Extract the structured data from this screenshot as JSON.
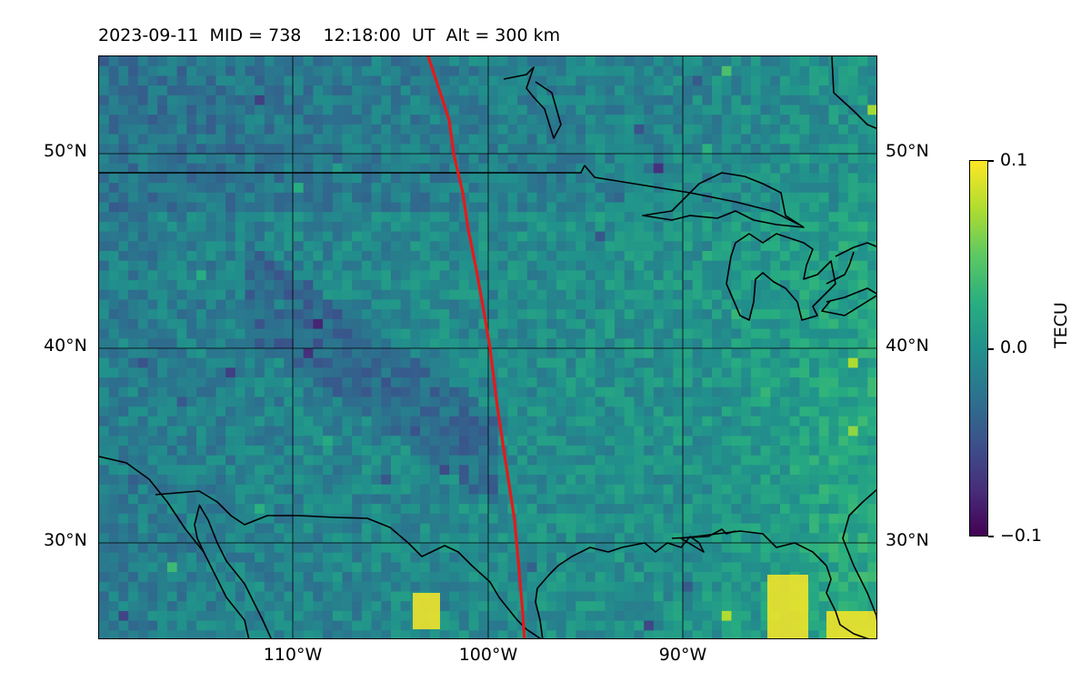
{
  "title": "2023-09-11  MID = 738    12:18:00  UT  Alt = 300 km",
  "map": {
    "lat_labels_left": [
      "50°N",
      "40°N",
      "30°N"
    ],
    "lat_labels_right": [
      "50°N",
      "40°N",
      "30°N"
    ],
    "lon_labels": [
      "110°W",
      "100°W",
      "90°W"
    ],
    "gridlines": true,
    "extent": {
      "lon": [
        -120,
        -80
      ],
      "lat": [
        25,
        55
      ]
    },
    "track_color": "#e41a1c",
    "coastline_color": "#000000"
  },
  "colorbar": {
    "label": "TECU",
    "ticks": [
      "0.1",
      "0.0",
      "−0.1"
    ],
    "range": [
      -0.1,
      0.1
    ],
    "colormap": "viridis"
  }
}
